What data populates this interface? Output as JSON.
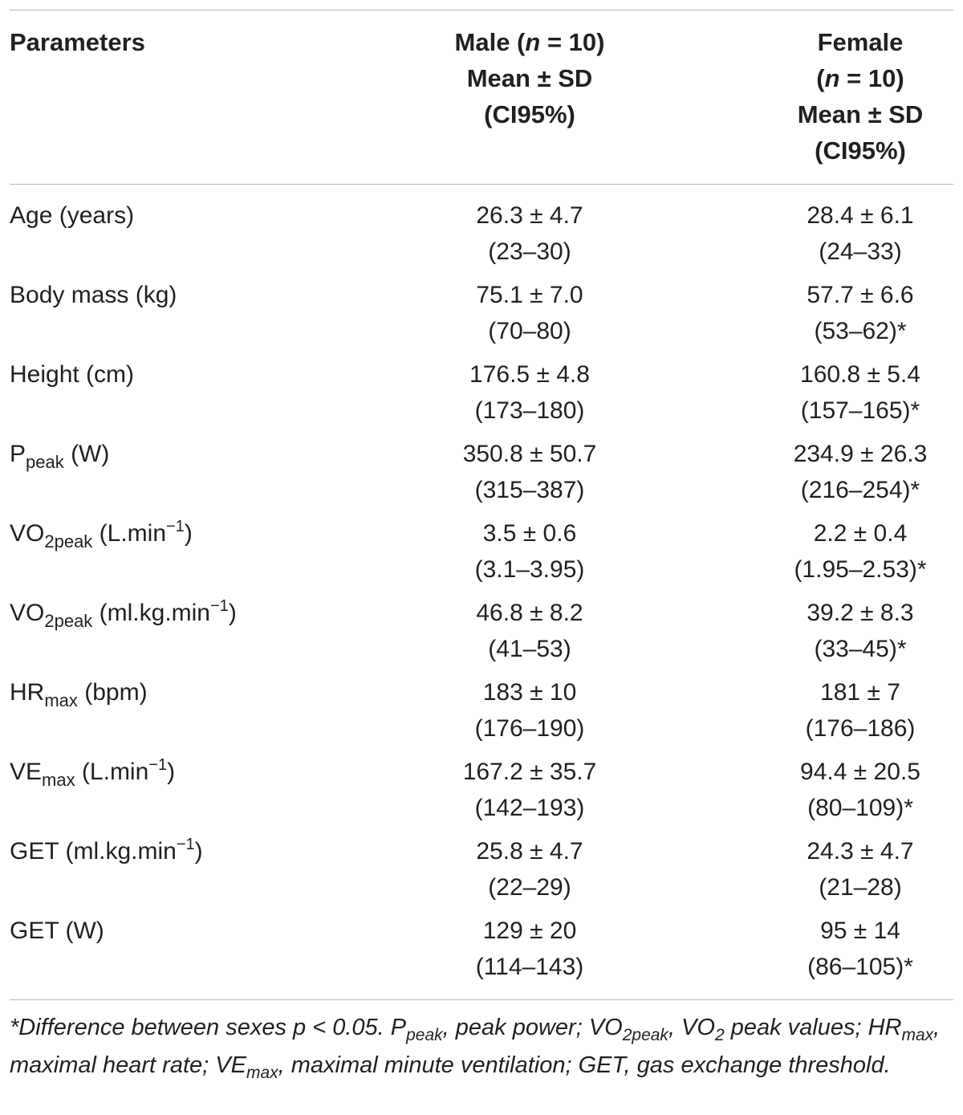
{
  "header": {
    "param_label": "Parameters",
    "male_line1_pre": "Male (",
    "male_n": "n",
    "male_line1_post": " = 10)",
    "male_line2": "Mean ± SD",
    "male_line3": "(CI95%)",
    "female_line1": "Female",
    "female_line2_pre": "(",
    "female_n": "n",
    "female_line2_post": " = 10)",
    "female_line3": "Mean ± SD",
    "female_line4": "(CI95%)"
  },
  "rows": [
    {
      "label": "Age (years)",
      "label_sub": "",
      "label_post": "",
      "label_sup": "",
      "label_end": "",
      "male_mean": "26.3 ± 4.7",
      "male_ci": "(23–30)",
      "female_mean": "28.4 ± 6.1",
      "female_ci": "(24–33)"
    },
    {
      "label": "Body mass (kg)",
      "label_sub": "",
      "label_post": "",
      "label_sup": "",
      "label_end": "",
      "male_mean": "75.1 ± 7.0",
      "male_ci": "(70–80)",
      "female_mean": "57.7 ± 6.6",
      "female_ci": "(53–62)*"
    },
    {
      "label": "Height (cm)",
      "label_sub": "",
      "label_post": "",
      "label_sup": "",
      "label_end": "",
      "male_mean": "176.5 ± 4.8",
      "male_ci": "(173–180)",
      "female_mean": "160.8 ± 5.4",
      "female_ci": "(157–165)*"
    },
    {
      "label": "P",
      "label_sub": "peak",
      "label_post": " (W)",
      "label_sup": "",
      "label_end": "",
      "male_mean": "350.8 ± 50.7",
      "male_ci": "(315–387)",
      "female_mean": "234.9 ± 26.3",
      "female_ci": "(216–254)*"
    },
    {
      "label": "VO",
      "label_sub": "2peak",
      "label_post": " (L.min",
      "label_sup": "−1",
      "label_end": ")",
      "male_mean": "3.5 ± 0.6",
      "male_ci": "(3.1–3.95)",
      "female_mean": "2.2 ± 0.4",
      "female_ci": "(1.95–2.53)*"
    },
    {
      "label": "VO",
      "label_sub": "2peak",
      "label_post": " (ml.kg.min",
      "label_sup": "−1",
      "label_end": ")",
      "male_mean": "46.8 ± 8.2",
      "male_ci": "(41–53)",
      "female_mean": "39.2 ± 8.3",
      "female_ci": "(33–45)*"
    },
    {
      "label": "HR",
      "label_sub": "max",
      "label_post": " (bpm)",
      "label_sup": "",
      "label_end": "",
      "male_mean": "183 ± 10",
      "male_ci": "(176–190)",
      "female_mean": "181 ± 7",
      "female_ci": "(176–186)"
    },
    {
      "label": "VE",
      "label_sub": "max",
      "label_post": " (L.min",
      "label_sup": "−1",
      "label_end": ")",
      "male_mean": "167.2 ± 35.7",
      "male_ci": "(142–193)",
      "female_mean": "94.4 ± 20.5",
      "female_ci": "(80–109)*"
    },
    {
      "label": "GET (ml.kg.min",
      "label_sub": "",
      "label_post": "",
      "label_sup": "−1",
      "label_end": ")",
      "male_mean": "25.8 ± 4.7",
      "male_ci": "(22–29)",
      "female_mean": "24.3 ± 4.7",
      "female_ci": "(21–28)"
    },
    {
      "label": "GET (W)",
      "label_sub": "",
      "label_post": "",
      "label_sup": "",
      "label_end": "",
      "male_mean": "129 ± 20",
      "male_ci": "(114–143)",
      "female_mean": "95 ± 14",
      "female_ci": "(86–105)*"
    }
  ],
  "footnote": {
    "p1": "*Difference between sexes p < 0.05. P",
    "s1": "peak",
    "p2": ", peak power; VO",
    "s2": "2peak",
    "p3": ", VO",
    "s3": "2",
    "p4": " peak values; HR",
    "s4": "max",
    "p5": ", maximal heart rate; VE",
    "s5": "max",
    "p6": ", maximal minute ventilation; GET, gas exchange threshold."
  }
}
